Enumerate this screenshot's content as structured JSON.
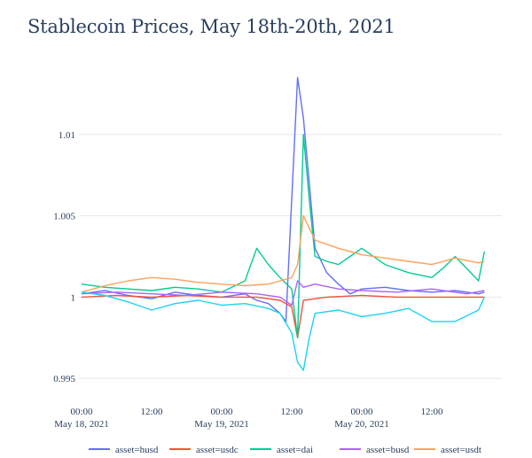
{
  "title": "Stablecoin Prices, May 18th-20th, 2021",
  "colors": {
    "husd": "#636efa",
    "usdc": "#ef553b",
    "dai": "#00cc96",
    "busd": "#ab63fa",
    "usdt": "#ffa15a",
    "extra": "#19d3f3",
    "grid": "#e8e8e8",
    "text": "#2a3f5f"
  },
  "chart_data": {
    "type": "line",
    "title": "Stablecoin Prices, May 18th-20th, 2021",
    "xlabel": "",
    "ylabel": "",
    "xlim": [
      "2021-05-18 00:00",
      "2021-05-20 21:00"
    ],
    "ylim": [
      0.9943,
      1.0138
    ],
    "grid": "horizontal",
    "legend_position": "bottom",
    "x_ticks": [
      {
        "value": "2021-05-18 00:00",
        "label": "00:00",
        "sublabel": "May 18, 2021"
      },
      {
        "value": "2021-05-18 12:00",
        "label": "12:00",
        "sublabel": ""
      },
      {
        "value": "2021-05-19 00:00",
        "label": "00:00",
        "sublabel": "May 19, 2021"
      },
      {
        "value": "2021-05-19 12:00",
        "label": "12:00",
        "sublabel": ""
      },
      {
        "value": "2021-05-20 00:00",
        "label": "00:00",
        "sublabel": "May 20, 2021"
      },
      {
        "value": "2021-05-20 12:00",
        "label": "12:00",
        "sublabel": ""
      }
    ],
    "y_ticks": [
      {
        "value": 0.995,
        "label": "0.995"
      },
      {
        "value": 1.0,
        "label": "1"
      },
      {
        "value": 1.005,
        "label": "1.005"
      },
      {
        "value": 1.01,
        "label": "1.01"
      }
    ],
    "series": [
      {
        "name": "asset=husd",
        "color": "#636efa",
        "x": [
          "2021-05-18 00:00",
          "2021-05-18 04:00",
          "2021-05-18 08:00",
          "2021-05-18 12:00",
          "2021-05-18 16:00",
          "2021-05-18 20:00",
          "2021-05-19 00:00",
          "2021-05-19 04:00",
          "2021-05-19 06:00",
          "2021-05-19 08:00",
          "2021-05-19 10:00",
          "2021-05-19 11:00",
          "2021-05-19 12:00",
          "2021-05-19 13:00",
          "2021-05-19 14:00",
          "2021-05-19 15:00",
          "2021-05-19 16:00",
          "2021-05-19 18:00",
          "2021-05-19 20:00",
          "2021-05-19 22:00",
          "2021-05-20 00:00",
          "2021-05-20 04:00",
          "2021-05-20 08:00",
          "2021-05-20 12:00",
          "2021-05-20 16:00",
          "2021-05-20 20:00",
          "2021-05-20 21:00"
        ],
        "y": [
          1.0002,
          1.0004,
          1.0001,
          0.9999,
          1.0003,
          1.0001,
          1.0,
          1.0002,
          0.9998,
          0.9996,
          0.999,
          0.9985,
          1.006,
          1.0135,
          1.011,
          1.007,
          1.003,
          1.0015,
          1.0008,
          1.0002,
          1.0005,
          1.0006,
          1.0004,
          1.0003,
          1.0004,
          1.0002,
          1.0003
        ]
      },
      {
        "name": "asset=usdc",
        "color": "#ef553b",
        "x": [
          "2021-05-18 00:00",
          "2021-05-18 06:00",
          "2021-05-18 12:00",
          "2021-05-18 18:00",
          "2021-05-19 00:00",
          "2021-05-19 06:00",
          "2021-05-19 10:00",
          "2021-05-19 12:00",
          "2021-05-19 13:00",
          "2021-05-19 14:00",
          "2021-05-19 18:00",
          "2021-05-20 00:00",
          "2021-05-20 06:00",
          "2021-05-20 12:00",
          "2021-05-20 18:00",
          "2021-05-20 21:00"
        ],
        "y": [
          1.0,
          1.0001,
          1.0,
          1.0001,
          1.0,
          1.0,
          0.9998,
          0.9994,
          0.9975,
          0.9998,
          1.0,
          1.0001,
          1.0,
          1.0,
          1.0,
          1.0
        ]
      },
      {
        "name": "asset=dai",
        "color": "#00cc96",
        "x": [
          "2021-05-18 00:00",
          "2021-05-18 04:00",
          "2021-05-18 08:00",
          "2021-05-18 12:00",
          "2021-05-18 16:00",
          "2021-05-18 20:00",
          "2021-05-19 00:00",
          "2021-05-19 04:00",
          "2021-05-19 06:00",
          "2021-05-19 08:00",
          "2021-05-19 10:00",
          "2021-05-19 12:00",
          "2021-05-19 13:00",
          "2021-05-19 14:00",
          "2021-05-19 15:00",
          "2021-05-19 16:00",
          "2021-05-19 18:00",
          "2021-05-19 20:00",
          "2021-05-19 22:00",
          "2021-05-20 00:00",
          "2021-05-20 04:00",
          "2021-05-20 08:00",
          "2021-05-20 12:00",
          "2021-05-20 14:00",
          "2021-05-20 16:00",
          "2021-05-20 20:00",
          "2021-05-20 21:00"
        ],
        "y": [
          1.0008,
          1.0006,
          1.0005,
          1.0004,
          1.0006,
          1.0005,
          1.0003,
          1.001,
          1.003,
          1.002,
          1.0012,
          1.0005,
          0.9975,
          1.01,
          1.006,
          1.0025,
          1.0022,
          1.002,
          1.0025,
          1.003,
          1.002,
          1.0015,
          1.0012,
          1.0018,
          1.0025,
          1.001,
          1.0028
        ]
      },
      {
        "name": "asset=busd",
        "color": "#ab63fa",
        "x": [
          "2021-05-18 00:00",
          "2021-05-18 06:00",
          "2021-05-18 12:00",
          "2021-05-18 18:00",
          "2021-05-19 00:00",
          "2021-05-19 06:00",
          "2021-05-19 10:00",
          "2021-05-19 12:00",
          "2021-05-19 13:00",
          "2021-05-19 14:00",
          "2021-05-19 16:00",
          "2021-05-19 20:00",
          "2021-05-20 00:00",
          "2021-05-20 06:00",
          "2021-05-20 12:00",
          "2021-05-20 18:00",
          "2021-05-20 21:00"
        ],
        "y": [
          1.0002,
          1.0003,
          1.0002,
          1.0001,
          1.0003,
          1.0002,
          1.0,
          0.9995,
          1.001,
          1.0006,
          1.0008,
          1.0005,
          1.0004,
          1.0003,
          1.0005,
          1.0002,
          1.0004
        ]
      },
      {
        "name": "asset=usdt",
        "color": "#ffa15a",
        "x": [
          "2021-05-18 00:00",
          "2021-05-18 04:00",
          "2021-05-18 08:00",
          "2021-05-18 12:00",
          "2021-05-18 16:00",
          "2021-05-18 20:00",
          "2021-05-19 00:00",
          "2021-05-19 04:00",
          "2021-05-19 08:00",
          "2021-05-19 10:00",
          "2021-05-19 12:00",
          "2021-05-19 13:00",
          "2021-05-19 14:00",
          "2021-05-19 16:00",
          "2021-05-19 20:00",
          "2021-05-20 00:00",
          "2021-05-20 04:00",
          "2021-05-20 08:00",
          "2021-05-20 12:00",
          "2021-05-20 16:00",
          "2021-05-20 20:00",
          "2021-05-20 21:00"
        ],
        "y": [
          1.0003,
          1.0007,
          1.001,
          1.0012,
          1.0011,
          1.0009,
          1.0008,
          1.0007,
          1.0008,
          1.001,
          1.0012,
          1.002,
          1.005,
          1.0035,
          1.003,
          1.0026,
          1.0024,
          1.0022,
          1.002,
          1.0024,
          1.0021,
          1.0022
        ]
      },
      {
        "name": "",
        "color": "#19d3f3",
        "x": [
          "2021-05-18 00:00",
          "2021-05-18 04:00",
          "2021-05-18 08:00",
          "2021-05-18 12:00",
          "2021-05-18 16:00",
          "2021-05-18 20:00",
          "2021-05-19 00:00",
          "2021-05-19 04:00",
          "2021-05-19 08:00",
          "2021-05-19 10:00",
          "2021-05-19 12:00",
          "2021-05-19 13:00",
          "2021-05-19 14:00",
          "2021-05-19 15:00",
          "2021-05-19 16:00",
          "2021-05-19 20:00",
          "2021-05-20 00:00",
          "2021-05-20 04:00",
          "2021-05-20 08:00",
          "2021-05-20 12:00",
          "2021-05-20 16:00",
          "2021-05-20 20:00",
          "2021-05-20 21:00"
        ],
        "y": [
          1.0003,
          1.0001,
          0.9997,
          0.9992,
          0.9996,
          0.9998,
          0.9995,
          0.9996,
          0.9993,
          0.999,
          0.9978,
          0.996,
          0.9955,
          0.9975,
          0.999,
          0.9992,
          0.9988,
          0.999,
          0.9993,
          0.9985,
          0.9985,
          0.9992,
          1.0
        ]
      }
    ]
  }
}
